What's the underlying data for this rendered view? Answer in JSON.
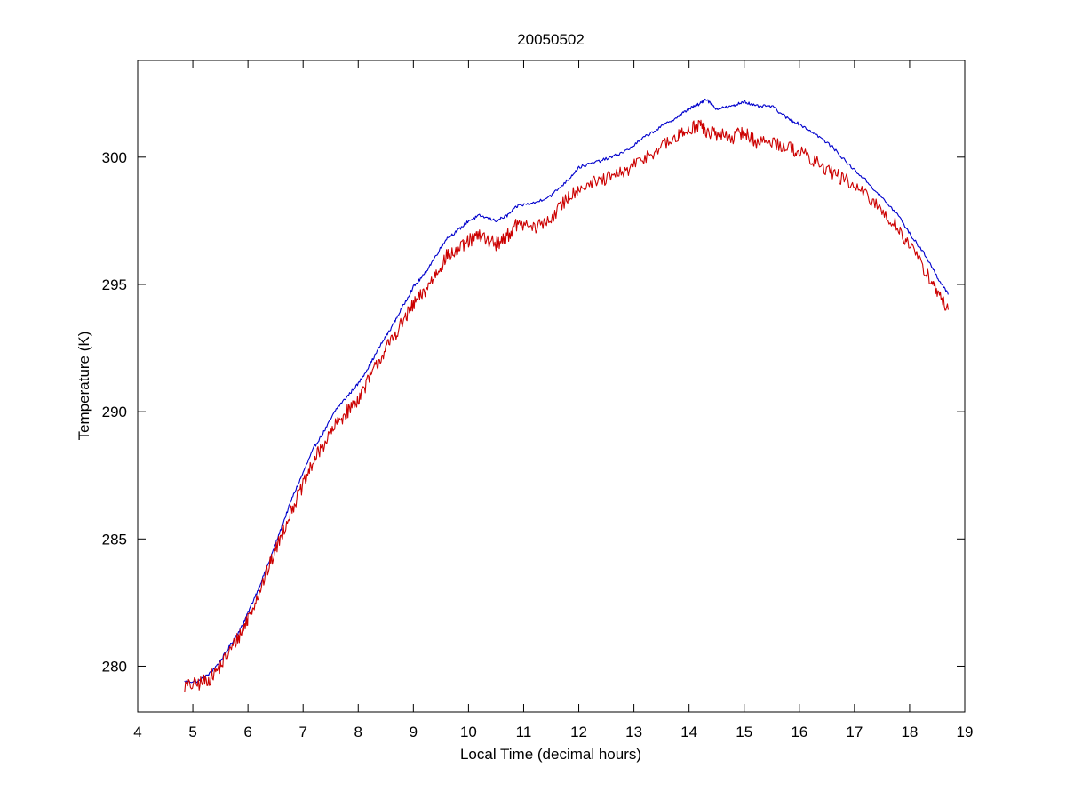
{
  "chart_data": {
    "type": "line",
    "title": "20050502",
    "xlabel": "Local Time (decimal hours)",
    "ylabel": "Temperature (K)",
    "xlim": [
      4,
      19
    ],
    "ylim": [
      278.2,
      303.8
    ],
    "xticks": [
      4,
      5,
      6,
      7,
      8,
      9,
      10,
      11,
      12,
      13,
      14,
      15,
      16,
      17,
      18,
      19
    ],
    "yticks": [
      280,
      285,
      290,
      295,
      300
    ],
    "grid": false,
    "legend": "none",
    "series": [
      {
        "color": "#0000cc",
        "noise": 0.06,
        "x": [
          4.85,
          5.1,
          5.3,
          5.5,
          5.7,
          5.9,
          6.0,
          6.2,
          6.4,
          6.6,
          6.8,
          7.0,
          7.2,
          7.4,
          7.6,
          7.8,
          8.0,
          8.2,
          8.4,
          8.6,
          8.8,
          9.0,
          9.2,
          9.4,
          9.6,
          9.8,
          10.0,
          10.2,
          10.5,
          10.7,
          10.9,
          11.2,
          11.5,
          11.8,
          12.0,
          12.3,
          12.6,
          12.9,
          13.2,
          13.5,
          13.8,
          14.0,
          14.2,
          14.3,
          14.5,
          14.8,
          15.0,
          15.2,
          15.5,
          15.8,
          16.0,
          16.3,
          16.6,
          16.9,
          17.2,
          17.5,
          17.8,
          18.0,
          18.3,
          18.5,
          18.7
        ],
        "y": [
          279.4,
          279.4,
          279.7,
          280.2,
          280.9,
          281.6,
          282.1,
          283.1,
          284.2,
          285.4,
          286.6,
          287.6,
          288.6,
          289.3,
          290.1,
          290.6,
          291.1,
          291.8,
          292.6,
          293.3,
          294.1,
          294.9,
          295.4,
          296.1,
          296.8,
          297.1,
          297.5,
          297.7,
          297.5,
          297.7,
          298.1,
          298.2,
          298.5,
          299.1,
          299.6,
          299.8,
          300.0,
          300.3,
          300.8,
          301.2,
          301.6,
          301.9,
          302.1,
          302.3,
          301.9,
          302.0,
          302.2,
          302.0,
          302.0,
          301.5,
          301.3,
          300.9,
          300.4,
          299.7,
          299.1,
          298.4,
          297.7,
          297.0,
          296.1,
          295.3,
          294.6
        ]
      },
      {
        "color": "#cc0000",
        "noise": 0.28,
        "x": [
          4.85,
          5.1,
          5.3,
          5.5,
          5.7,
          5.9,
          6.0,
          6.2,
          6.4,
          6.6,
          6.8,
          7.0,
          7.2,
          7.4,
          7.6,
          7.8,
          8.0,
          8.2,
          8.4,
          8.6,
          8.8,
          9.0,
          9.2,
          9.4,
          9.6,
          9.8,
          10.0,
          10.2,
          10.5,
          10.7,
          10.9,
          11.2,
          11.5,
          11.8,
          12.0,
          12.3,
          12.6,
          12.9,
          13.2,
          13.5,
          13.8,
          14.0,
          14.2,
          14.3,
          14.5,
          14.8,
          15.0,
          15.2,
          15.5,
          15.8,
          16.0,
          16.3,
          16.6,
          16.9,
          17.2,
          17.5,
          17.8,
          18.0,
          18.3,
          18.5,
          18.7
        ],
        "y": [
          279.2,
          279.3,
          279.5,
          280.0,
          280.7,
          281.4,
          281.9,
          282.9,
          284.0,
          285.1,
          286.2,
          287.1,
          288.1,
          288.8,
          289.5,
          290.0,
          290.5,
          291.3,
          292.1,
          292.8,
          293.5,
          294.2,
          294.7,
          295.4,
          296.1,
          296.3,
          296.7,
          296.9,
          296.6,
          296.9,
          297.4,
          297.2,
          297.6,
          298.4,
          298.8,
          299.0,
          299.2,
          299.5,
          300.0,
          300.4,
          300.8,
          301.1,
          301.3,
          301.0,
          300.9,
          300.8,
          301.0,
          300.6,
          300.6,
          300.4,
          300.2,
          299.8,
          299.4,
          299.0,
          298.5,
          297.9,
          297.2,
          296.5,
          295.5,
          294.7,
          294.0
        ]
      }
    ]
  }
}
